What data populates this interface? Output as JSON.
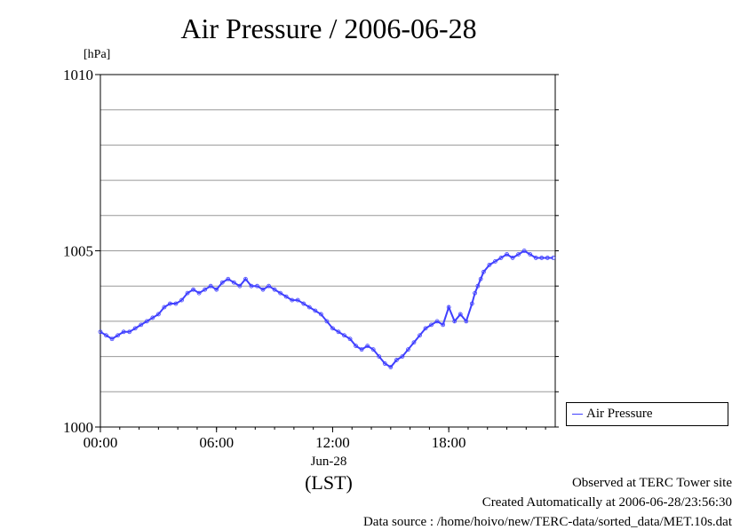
{
  "title": "Air Pressure / 2006-06-28",
  "unit_label": "[hPa]",
  "x_date_label": "Jun-28",
  "x_tz_label": "(LST)",
  "footer": {
    "line1": "Observed at TERC Tower site",
    "line2": "Created Automatically at 2006-06-28/23:56:30",
    "line3": "Data source : /home/hoivo/new/TERC-data/sorted_data/MET.10s.dat"
  },
  "colors": {
    "series": "#4040ff",
    "grid": "#999999",
    "axis": "#000000"
  },
  "chart_data": {
    "type": "line",
    "title": "Air Pressure / 2006-06-28",
    "ylabel": "[hPa]",
    "xlabel": "(LST)",
    "ylim": [
      1000,
      1010
    ],
    "xlim_hours": [
      0,
      23.5
    ],
    "y_ticks": [
      1000,
      1005,
      1010
    ],
    "x_ticks": [
      {
        "hour": 0,
        "label": "00:00"
      },
      {
        "hour": 6,
        "label": "06:00"
      },
      {
        "hour": 12,
        "label": "12:00"
      },
      {
        "hour": 18,
        "label": "18:00"
      }
    ],
    "grid": true,
    "legend": {
      "placement": "bottom-right outside",
      "entries": [
        "Air Pressure"
      ]
    },
    "series": [
      {
        "name": "Air Pressure",
        "x_hours": [
          0,
          0.3,
          0.6,
          0.9,
          1.2,
          1.5,
          1.8,
          2.1,
          2.4,
          2.7,
          3.0,
          3.3,
          3.6,
          3.9,
          4.2,
          4.5,
          4.8,
          5.1,
          5.4,
          5.7,
          6.0,
          6.3,
          6.6,
          6.9,
          7.2,
          7.5,
          7.8,
          8.1,
          8.4,
          8.7,
          9.0,
          9.3,
          9.6,
          9.9,
          10.2,
          10.5,
          10.8,
          11.1,
          11.4,
          11.7,
          12.0,
          12.3,
          12.6,
          12.9,
          13.2,
          13.5,
          13.8,
          14.1,
          14.4,
          14.7,
          15.0,
          15.3,
          15.6,
          15.9,
          16.2,
          16.5,
          16.8,
          17.1,
          17.4,
          17.7,
          18.0,
          18.3,
          18.6,
          18.9,
          19.2,
          19.35,
          19.5,
          19.65,
          19.8,
          20.1,
          20.4,
          20.7,
          21.0,
          21.3,
          21.6,
          21.9,
          22.2,
          22.5,
          22.8,
          23.1,
          23.4
        ],
        "values": [
          1002.7,
          1002.6,
          1002.5,
          1002.6,
          1002.7,
          1002.7,
          1002.8,
          1002.9,
          1003.0,
          1003.1,
          1003.2,
          1003.4,
          1003.5,
          1003.5,
          1003.6,
          1003.8,
          1003.9,
          1003.8,
          1003.9,
          1004.0,
          1003.9,
          1004.1,
          1004.2,
          1004.1,
          1004.0,
          1004.2,
          1004.0,
          1004.0,
          1003.9,
          1004.0,
          1003.9,
          1003.8,
          1003.7,
          1003.6,
          1003.6,
          1003.5,
          1003.4,
          1003.3,
          1003.2,
          1003.0,
          1002.8,
          1002.7,
          1002.6,
          1002.5,
          1002.3,
          1002.2,
          1002.3,
          1002.2,
          1002.0,
          1001.8,
          1001.7,
          1001.9,
          1002.0,
          1002.2,
          1002.4,
          1002.6,
          1002.8,
          1002.9,
          1003.0,
          1002.9,
          1003.4,
          1003.0,
          1003.2,
          1003.0,
          1003.5,
          1003.8,
          1004.0,
          1004.2,
          1004.4,
          1004.6,
          1004.7,
          1004.8,
          1004.9,
          1004.8,
          1004.9,
          1005.0,
          1004.9,
          1004.8,
          1004.8,
          1004.8,
          1004.8
        ]
      }
    ]
  }
}
